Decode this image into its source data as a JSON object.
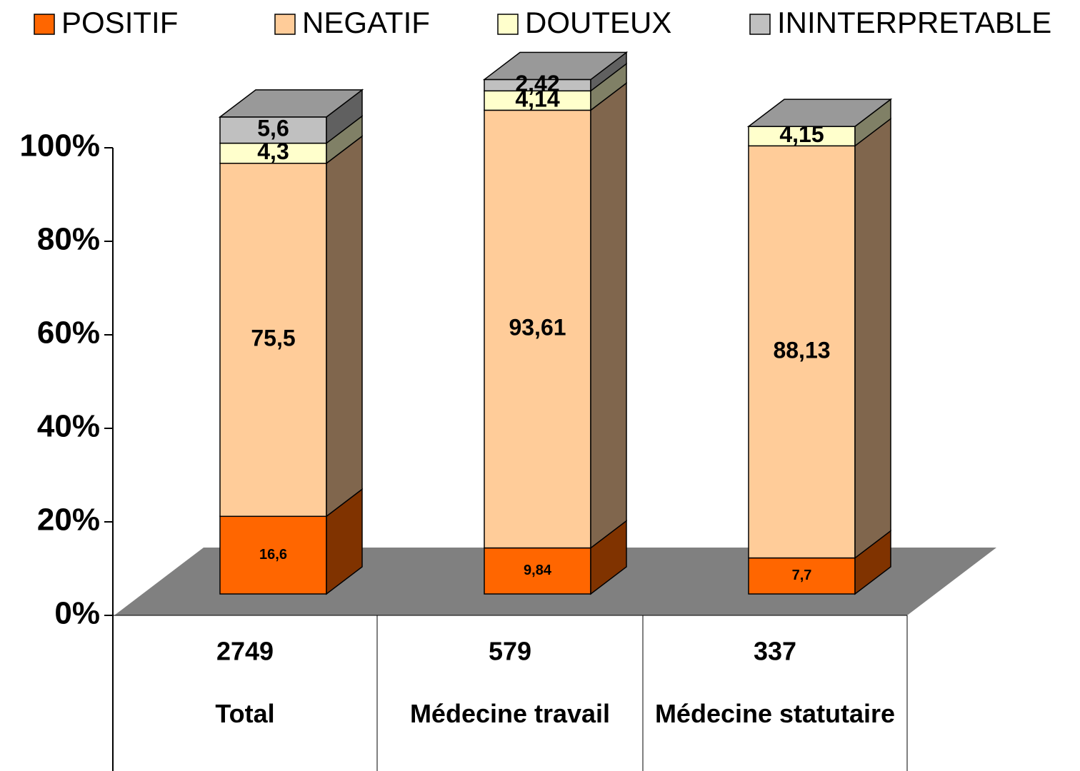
{
  "chart_data": {
    "type": "bar3d_stacked",
    "categories": [
      "Total",
      "Médecine travail",
      "Médecine statutaire"
    ],
    "counts": [
      2749,
      579,
      337
    ],
    "series": [
      {
        "name": "POSITIF",
        "color": "#ff6600",
        "values": [
          16.6,
          9.84,
          7.7
        ],
        "value_labels": [
          "16,6",
          "9,84",
          "7,7"
        ]
      },
      {
        "name": "NEGATIF",
        "color": "#ffcc99",
        "values": [
          75.5,
          93.61,
          88.13
        ],
        "value_labels": [
          "75,5",
          "93,61",
          "88,13"
        ]
      },
      {
        "name": "DOUTEUX",
        "color": "#ffffcc",
        "values": [
          4.3,
          4.14,
          4.15
        ],
        "value_labels": [
          "4,3",
          "4,14",
          "4,15"
        ]
      },
      {
        "name": "ININTERPRETABLE",
        "color": "#c0c0c0",
        "values": [
          5.6,
          2.42,
          null
        ],
        "value_labels": [
          "5,6",
          "2,42",
          null
        ]
      }
    ],
    "ylim": [
      0,
      100
    ],
    "yticks": [
      {
        "value": 0,
        "label": "0%"
      },
      {
        "value": 20,
        "label": "20%"
      },
      {
        "value": 40,
        "label": "40%"
      },
      {
        "value": 60,
        "label": "60%"
      },
      {
        "value": 80,
        "label": "80%"
      },
      {
        "value": 100,
        "label": "100%"
      }
    ],
    "legend": "top"
  }
}
